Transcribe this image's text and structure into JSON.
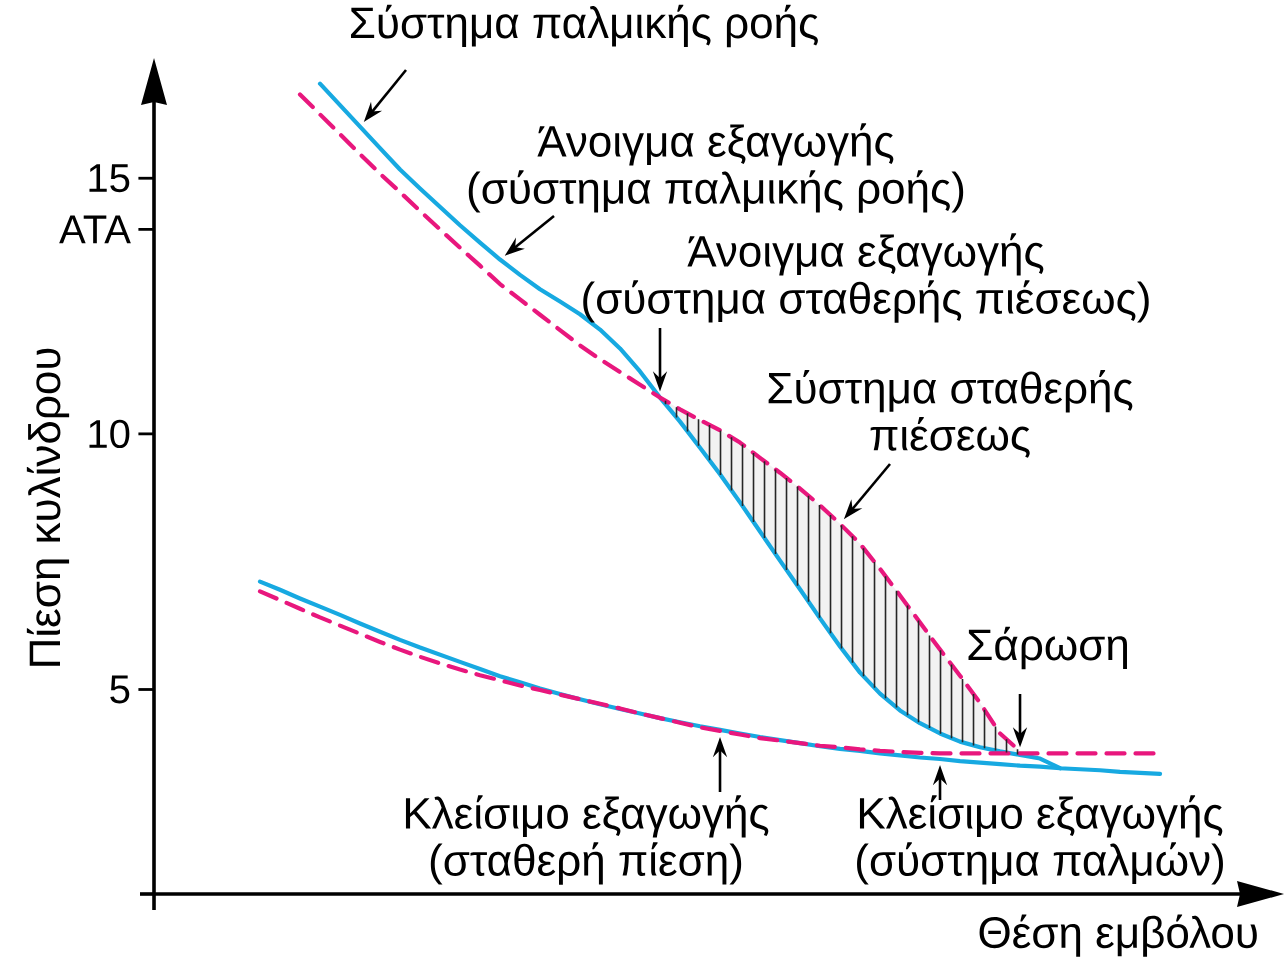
{
  "chart_data": {
    "type": "line",
    "xlabel": "Θέση εμβόλου",
    "ylabel": "Πίεση κυλίνδρου",
    "categories": [
      null,
      null,
      null,
      null,
      null,
      null,
      null,
      null,
      null,
      null,
      null,
      null,
      null,
      null,
      null,
      null,
      null,
      null,
      null,
      null,
      null,
      null,
      null,
      null,
      null,
      null,
      null,
      null,
      null,
      null,
      null,
      null,
      null,
      null,
      null,
      null,
      null,
      null,
      null,
      null,
      null,
      null,
      null,
      null,
      null,
      null
    ],
    "ylim": [
      1,
      17
    ],
    "yticks": [
      5,
      10,
      {
        "value": 14,
        "label": "ATA"
      },
      15
    ],
    "tick_labels": "y",
    "marker": "none",
    "series": [
      {
        "name": "Σύστημα παλμικής ροής",
        "color": "#17a9e1",
        "line_style": "solid",
        "values": [
          null,
          null,
          null,
          16.85,
          16.43,
          16.01,
          15.59,
          15.17,
          14.8,
          14.44,
          14.08,
          13.74,
          13.41,
          13.11,
          12.83,
          12.59,
          12.34,
          12.04,
          11.67,
          11.22,
          10.71,
          10.24,
          9.73,
          9.21,
          8.66,
          8.09,
          7.52,
          6.96,
          6.39,
          5.84,
          5.33,
          4.92,
          4.59,
          4.34,
          4.14,
          3.98,
          3.87,
          3.79,
          3.72,
          3.65,
          3.46,
          null,
          null,
          null,
          null,
          null
        ]
      },
      {
        "name": "Σύστημα σταθερής πιέσεως",
        "color": "#e8177d",
        "line_style": "dashed",
        "values": [
          null,
          null,
          16.64,
          16.25,
          15.86,
          15.47,
          15.09,
          14.73,
          14.36,
          14.0,
          13.64,
          13.29,
          12.93,
          12.63,
          12.33,
          12.03,
          11.73,
          11.46,
          11.21,
          10.96,
          10.71,
          10.48,
          10.27,
          10.07,
          9.83,
          9.53,
          9.24,
          8.93,
          8.6,
          8.24,
          7.85,
          7.36,
          6.84,
          6.31,
          5.78,
          5.27,
          4.74,
          4.14,
          3.79,
          null,
          null,
          null,
          null,
          null,
          null,
          null
        ],
        "lower": [
          null,
          null,
          null,
          null,
          null,
          null,
          null,
          null,
          null,
          null,
          null,
          null,
          null,
          null,
          null,
          null,
          null,
          null,
          null,
          null,
          10.71,
          10.24,
          9.73,
          9.21,
          8.66,
          8.09,
          7.52,
          6.96,
          6.39,
          5.84,
          5.33,
          4.92,
          4.59,
          4.34,
          4.14,
          3.98,
          3.87,
          3.79,
          3.72,
          null,
          null,
          null,
          null,
          null,
          null,
          null
        ],
        "upper": [
          null,
          null,
          null,
          null,
          null,
          null,
          null,
          null,
          null,
          null,
          null,
          null,
          null,
          null,
          null,
          null,
          null,
          null,
          null,
          null,
          10.71,
          10.48,
          10.27,
          10.07,
          9.83,
          9.53,
          9.24,
          8.93,
          8.6,
          8.24,
          7.85,
          7.36,
          6.84,
          6.31,
          5.78,
          5.27,
          4.74,
          4.14,
          3.79,
          null,
          null,
          null,
          null,
          null,
          null,
          null
        ]
      },
      {
        "color": "#17a9e1",
        "line_style": "solid",
        "values": [
          7.11,
          6.95,
          6.78,
          6.62,
          6.46,
          6.29,
          6.13,
          5.97,
          5.82,
          5.68,
          5.54,
          5.4,
          5.26,
          5.14,
          5.02,
          4.91,
          4.81,
          4.71,
          4.62,
          4.53,
          4.44,
          4.36,
          4.28,
          4.21,
          4.14,
          4.07,
          4.01,
          3.95,
          3.89,
          3.84,
          3.8,
          3.75,
          3.71,
          3.67,
          3.64,
          3.6,
          3.57,
          3.54,
          3.51,
          3.49,
          3.46,
          3.44,
          3.42,
          3.39,
          3.37,
          3.35
        ]
      },
      {
        "color": "#e8177d",
        "line_style": "dashed",
        "values": [
          6.92,
          6.75,
          6.58,
          6.41,
          6.25,
          6.09,
          5.93,
          5.78,
          5.64,
          5.51,
          5.39,
          5.28,
          5.18,
          5.08,
          4.99,
          4.9,
          4.81,
          4.72,
          4.63,
          4.53,
          4.44,
          4.35,
          4.26,
          4.19,
          4.12,
          4.05,
          4.0,
          3.95,
          3.9,
          3.87,
          3.83,
          3.8,
          3.78,
          3.76,
          3.75,
          3.75,
          3.75,
          3.75,
          3.75,
          3.75,
          3.75,
          3.75,
          3.75,
          3.75,
          3.75,
          3.75
        ]
      }
    ],
    "annotations": [
      "Άνοιγμα εξαγωγής (σύστημα παλμικής ροής)",
      "Άνοιγμα εξαγωγής (σύστημα σταθερής πιέσεως)",
      "Σάρωση",
      "Κλείσιμο εξαγωγής (σταθερή πίεση)",
      "Κλείσιμο εξαγωγής (σύστημα παλμών)"
    ]
  }
}
